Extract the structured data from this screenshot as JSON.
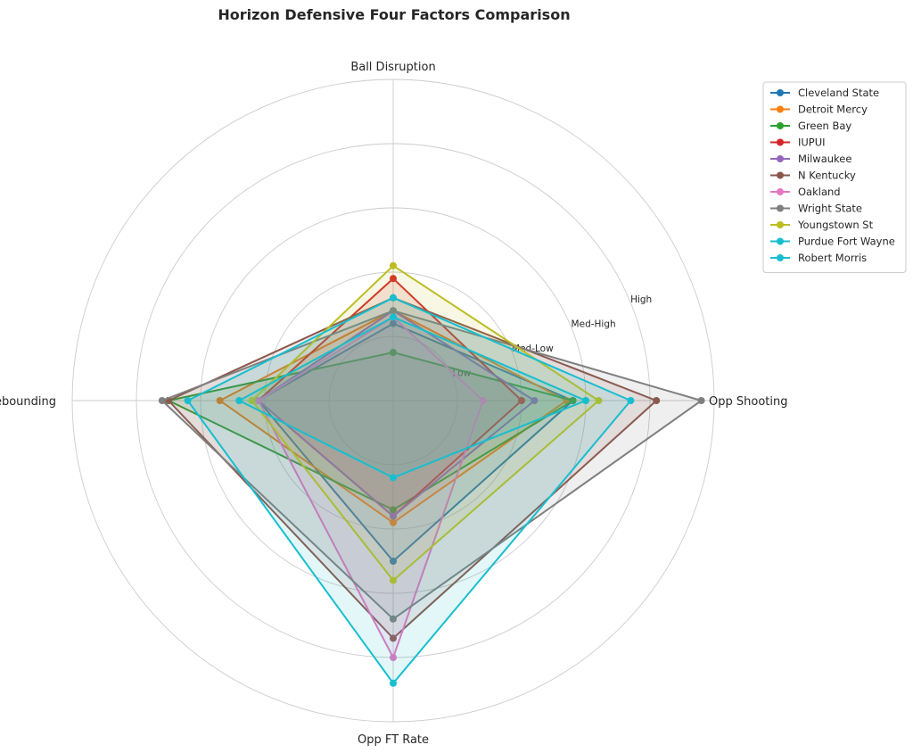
{
  "chart_data": {
    "type": "radar",
    "title": "Horizon Defensive Four Factors Comparison",
    "axes": [
      "Opp Shooting",
      "Ball Disruption",
      "Def Rebounding",
      "Opp FT Rate"
    ],
    "rlim": [
      0,
      5
    ],
    "radial_ticks": [
      {
        "value": 1,
        "label": "Low"
      },
      {
        "value": 2,
        "label": "Med-Low"
      },
      {
        "value": 3,
        "label": "Med-High"
      },
      {
        "value": 4,
        "label": "High"
      }
    ],
    "grid": true,
    "legend_position": "top-right",
    "series": [
      {
        "name": "Cleveland State",
        "color": "#1f77b4",
        "values": [
          2.8,
          1.2,
          2.1,
          2.5
        ]
      },
      {
        "name": "Detroit Mercy",
        "color": "#ff7f0e",
        "values": [
          2.7,
          1.4,
          2.7,
          1.9
        ]
      },
      {
        "name": "Green Bay",
        "color": "#2ca02c",
        "values": [
          2.8,
          0.75,
          3.5,
          1.7
        ]
      },
      {
        "name": "IUPUI",
        "color": "#d62728",
        "values": [
          2.0,
          1.9,
          2.1,
          1.8
        ]
      },
      {
        "name": "Milwaukee",
        "color": "#9467bd",
        "values": [
          2.2,
          1.4,
          2.1,
          1.8
        ]
      },
      {
        "name": "N Kentucky",
        "color": "#8c564b",
        "values": [
          4.1,
          1.6,
          3.5,
          3.7
        ]
      },
      {
        "name": "Oakland",
        "color": "#e377c2",
        "values": [
          1.4,
          1.3,
          2.1,
          4.0
        ]
      },
      {
        "name": "Wright State",
        "color": "#7f7f7f",
        "values": [
          4.8,
          1.4,
          3.6,
          3.4
        ]
      },
      {
        "name": "Youngstown St",
        "color": "#bcbd22",
        "values": [
          3.2,
          2.1,
          2.2,
          2.8
        ]
      },
      {
        "name": "Purdue Fort Wayne",
        "color": "#17becf",
        "values": [
          3.7,
          1.6,
          3.2,
          4.4
        ]
      },
      {
        "name": "Robert Morris",
        "color": "#17becf",
        "values": [
          3.0,
          1.3,
          2.4,
          1.2
        ]
      }
    ]
  }
}
